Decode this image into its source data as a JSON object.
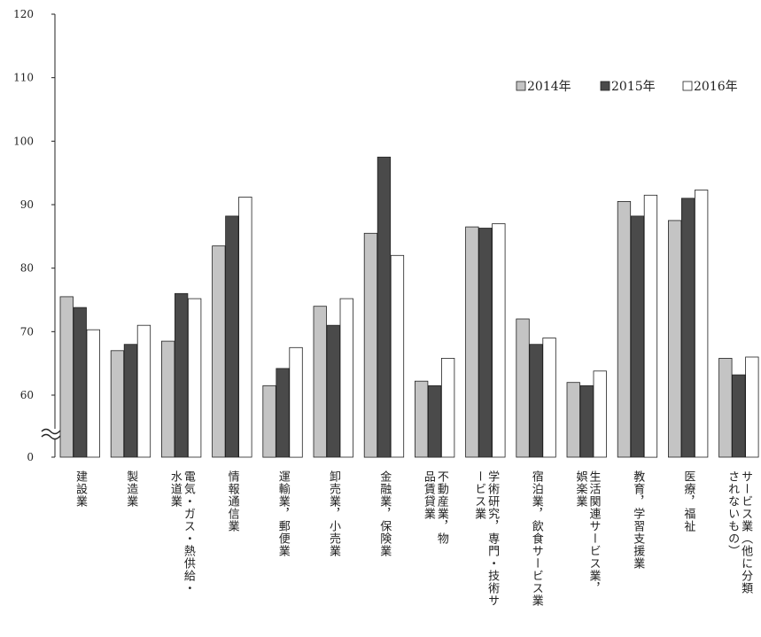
{
  "chart_data": {
    "type": "bar",
    "title": "",
    "xlabel": "",
    "ylabel": "",
    "ylim": [
      0,
      120
    ],
    "axis_break": true,
    "grid": false,
    "legend_position": "top-right",
    "y_ticks": [
      "120",
      "110",
      "100",
      "90",
      "80",
      "70",
      "60",
      "0"
    ],
    "categories": [
      "建設業",
      "製造業",
      "電気・ガス・熱供給・水道業",
      "情報通信業",
      "運輸業，郵便業",
      "卸売業，小売業",
      "金融業，保険業",
      "不動産業，物品賃貸業",
      "学術研究，専門・技術サービス業",
      "宿泊業，飲食サービス業",
      "生活関連サービス業，娯楽業",
      "教育，学習支援業",
      "医療，福祉",
      "サービス業（他に分類されないもの）"
    ],
    "category_label_lines": [
      [
        "建設業"
      ],
      [
        "製造業"
      ],
      [
        "電気・ガス・熱供給・",
        "水道業"
      ],
      [
        "情報通信業"
      ],
      [
        "運輸業，郵便業"
      ],
      [
        "卸売業，小売業"
      ],
      [
        "金融業，保険業"
      ],
      [
        "不動産業，物",
        "品賃貸業"
      ],
      [
        "学術研究，専門・技術サ",
        "ービス業"
      ],
      [
        "宿泊業，飲食サービス業"
      ],
      [
        "生活関連サービス業，",
        "娯楽業"
      ],
      [
        "教育，学習支援業"
      ],
      [
        "医療，福祉"
      ],
      [
        "サービス業（他に分類",
        "されないもの）"
      ]
    ],
    "series": [
      {
        "name": "2014年",
        "color": "#c4c4c4",
        "values": [
          75.5,
          67.0,
          68.5,
          83.5,
          61.5,
          74.0,
          85.5,
          62.2,
          86.5,
          72.0,
          62.0,
          90.5,
          87.5,
          65.8
        ]
      },
      {
        "name": "2015年",
        "color": "#4a4a4a",
        "values": [
          73.8,
          68.0,
          76.0,
          88.2,
          64.2,
          71.0,
          97.5,
          61.5,
          86.3,
          68.0,
          61.5,
          88.2,
          91.0,
          63.2
        ]
      },
      {
        "name": "2016年",
        "color": "#ffffff",
        "values": [
          70.3,
          71.0,
          75.2,
          91.2,
          67.5,
          75.2,
          82.0,
          65.8,
          87.0,
          69.0,
          63.8,
          91.5,
          92.3,
          66.0
        ]
      }
    ]
  }
}
